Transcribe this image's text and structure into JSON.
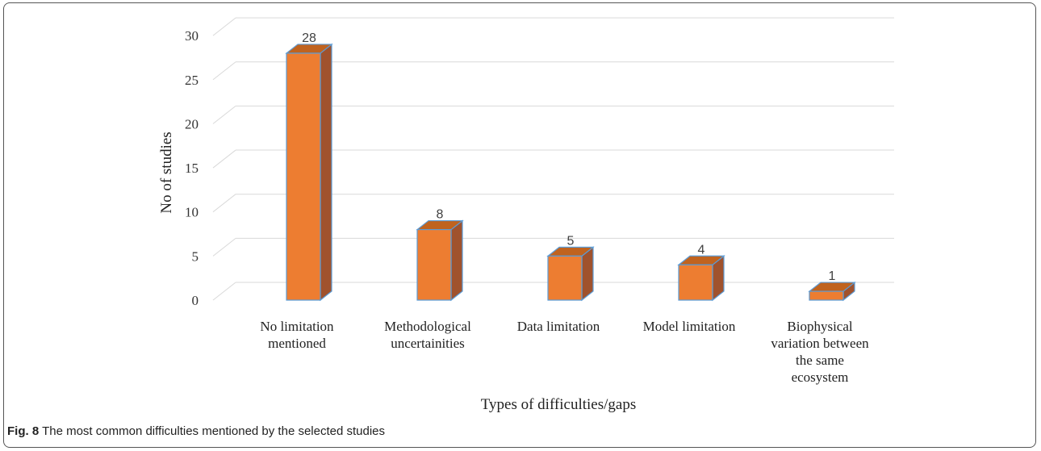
{
  "caption": {
    "label": "Fig. 8",
    "text": "The most common difficulties mentioned by the selected studies"
  },
  "colors": {
    "bar_front": "#ED7D31",
    "bar_side": "#A0522D",
    "bar_top": "#C0631F",
    "bar_edge": "#5B9BD5",
    "grid": "#D9D9D9"
  },
  "chart_data": {
    "type": "bar",
    "style": "3d-column",
    "title": "",
    "xlabel": "Types of difficulties/gaps",
    "ylabel": "No of studies",
    "ylim": [
      0,
      30
    ],
    "yticks": [
      0,
      5,
      10,
      15,
      20,
      25,
      30
    ],
    "grid": true,
    "legend": "none",
    "categories": [
      [
        "No limitation",
        "mentioned"
      ],
      [
        "Methodological",
        "uncertainities"
      ],
      [
        "Data limitation"
      ],
      [
        "Model limitation"
      ],
      [
        "Biophysical",
        "variation between",
        "the same",
        "ecosystem"
      ]
    ],
    "values": [
      28,
      8,
      5,
      4,
      1
    ],
    "data_labels": [
      "28",
      "8",
      "5",
      "4",
      "1"
    ]
  }
}
